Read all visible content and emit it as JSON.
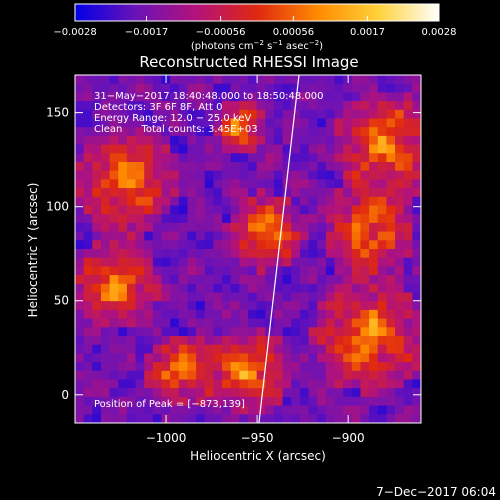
{
  "chart_data": {
    "type": "heatmap",
    "title": "Reconstructed RHESSI Image",
    "xlabel": "Heliocentric X (arcsec)",
    "ylabel": "Heliocentric Y (arcsec)",
    "xlim": [
      -1050,
      -860
    ],
    "ylim": [
      -15,
      170
    ],
    "x_ticks": [
      -1000,
      -950,
      -900
    ],
    "x_tick_labels": [
      "−1000",
      "−950",
      "−900"
    ],
    "y_ticks": [
      0,
      50,
      100,
      150
    ],
    "y_tick_labels": [
      "0",
      "50",
      "100",
      "150"
    ],
    "colorbar": {
      "range": [
        -0.0028,
        0.0028
      ],
      "ticks": [
        -0.0028,
        -0.0017,
        -0.00056,
        0.00056,
        0.0017,
        0.0028
      ],
      "tick_labels": [
        "−0.0028",
        "−0.0017",
        "−0.00056",
        "0.00056",
        "0.0017",
        "0.0028"
      ],
      "colors": [
        "#0000e6",
        "#6a12b8",
        "#b3127a",
        "#e02810",
        "#ff8a00",
        "#ffd23a",
        "#ffffff"
      ]
    },
    "annotations": [
      "31−May−2017 18:40:48.000 to 18:50:48.000",
      "Detectors: 3F 6F 8F, Att 0",
      "Energy Range: 12.0 − 25.0 keV",
      "Clean      Total counts: 3.45E+03"
    ],
    "peak_label": "Position of Peak = [−873,139]",
    "limb_line": [
      [
        -949,
        -15
      ],
      [
        -927,
        170
      ]
    ],
    "grid": false
  },
  "units_label": "(photons cm",
  "units_exp1": "−2",
  "units_mid": " s",
  "units_exp2": "−1",
  "units_end": " asec",
  "units_exp3": "−2",
  "units_close": ")",
  "footer_date": "7−Dec−2017 06:04",
  "colors": {
    "background": "#000000",
    "text": "#ffffff",
    "limb": "#ffffff"
  }
}
